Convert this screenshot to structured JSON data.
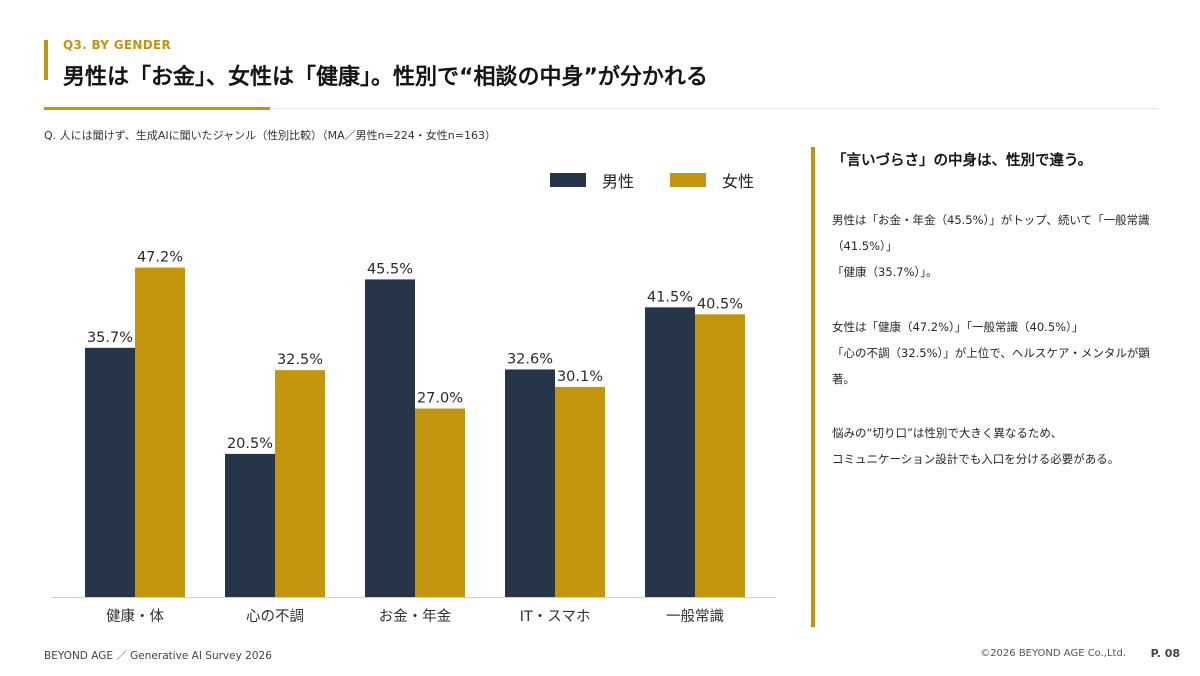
{
  "header": {
    "section_tag": "Q3.  BY GENDER",
    "title": "男性は「お金」、女性は「健康」。性別で“相談の中身”が分かれる",
    "question": "Q. 人には聞けず、生成AIに聞いたジャンル（性別比較）（MA／男性n=224・女性n=163）"
  },
  "colors": {
    "male": "#263648",
    "female": "#c3950c",
    "accent": "#c3950c"
  },
  "chart_data": {
    "type": "bar",
    "categories": [
      "健康・体",
      "心の不調",
      "お金・年金",
      "IT・スマホ",
      "一般常識"
    ],
    "series": [
      {
        "name": "男性",
        "values": [
          35.7,
          20.5,
          45.5,
          32.6,
          41.5
        ],
        "labels": [
          "35.7%",
          "20.5%",
          "45.5%",
          "32.6%",
          "41.5%"
        ]
      },
      {
        "name": "女性",
        "values": [
          47.2,
          32.5,
          27.0,
          30.1,
          40.5
        ],
        "labels": [
          "47.2%",
          "32.5%",
          "27.0%",
          "30.1%",
          "40.5%"
        ]
      }
    ],
    "ylim": [
      0,
      50
    ],
    "title": "",
    "xlabel": "",
    "ylabel": "",
    "grid": false,
    "legend": "top-right"
  },
  "sidebar": {
    "heading": "「言いづらさ」の中身は、性別で違う。",
    "para1": [
      "男性は「お金・年金（45.5%）」がトップ、続いて「一般常識",
      "（41.5%）」",
      "「健康（35.7%）」。"
    ],
    "para2": [
      "女性は「健康（47.2%）」「一般常識（40.5%）」",
      "「心の不調（32.5%）」が上位で、ヘルスケア・メンタルが顕",
      "著。"
    ],
    "para3": [
      "悩みの“切り口”は性別で大きく異なるため、",
      "コミュニケーション設計でも入口を分ける必要がある。"
    ]
  },
  "footer": {
    "left": "BEYOND AGE  ／  Generative AI Survey 2026",
    "copyright": "©2026 BEYOND AGE Co.,Ltd.",
    "page": "P. 08"
  }
}
